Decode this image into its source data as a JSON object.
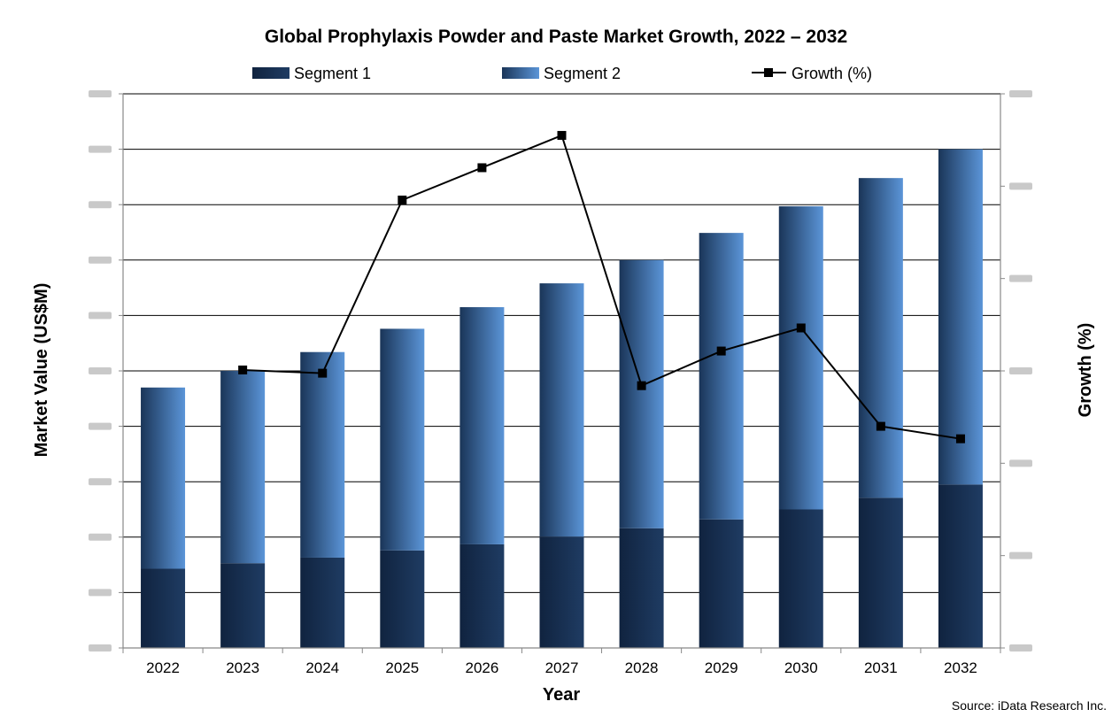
{
  "chart_data": {
    "type": "bar",
    "stacked": true,
    "title": "Global Prophylaxis Powder and Paste Market Growth, 2022 – 2032",
    "xlabel": "Year",
    "ylabel": "Market Value (US$M)",
    "y2label": "Growth (%)",
    "categories": [
      "2022",
      "2023",
      "2024",
      "2025",
      "2026",
      "2027",
      "2028",
      "2029",
      "2030",
      "2031",
      "2032"
    ],
    "ylim": [
      0,
      10
    ],
    "y2lim": [
      0,
      12
    ],
    "y_tick_count": 10,
    "y2_tick_count": 6,
    "grid": true,
    "legend_position": "top",
    "series": [
      {
        "name": "Segment 1",
        "axis": "left",
        "color_dark": "#10233f",
        "color_light": "#1f3c63",
        "values": [
          1.43,
          1.53,
          1.63,
          1.76,
          1.87,
          2.01,
          2.16,
          2.32,
          2.5,
          2.71,
          2.95
        ]
      },
      {
        "name": "Segment 2",
        "axis": "left",
        "color_dark": "#1a3558",
        "color_light": "#5b95d8",
        "values": [
          3.27,
          3.47,
          3.71,
          4.0,
          4.28,
          4.57,
          4.84,
          5.17,
          5.47,
          5.77,
          6.05
        ]
      },
      {
        "name": "Growth (%)",
        "axis": "right",
        "type": "line",
        "color": "#000000",
        "values": [
          null,
          6.02,
          5.95,
          9.7,
          10.4,
          11.1,
          5.68,
          6.43,
          6.93,
          4.8,
          4.53
        ]
      }
    ],
    "source": "Source: iData Research Inc."
  }
}
